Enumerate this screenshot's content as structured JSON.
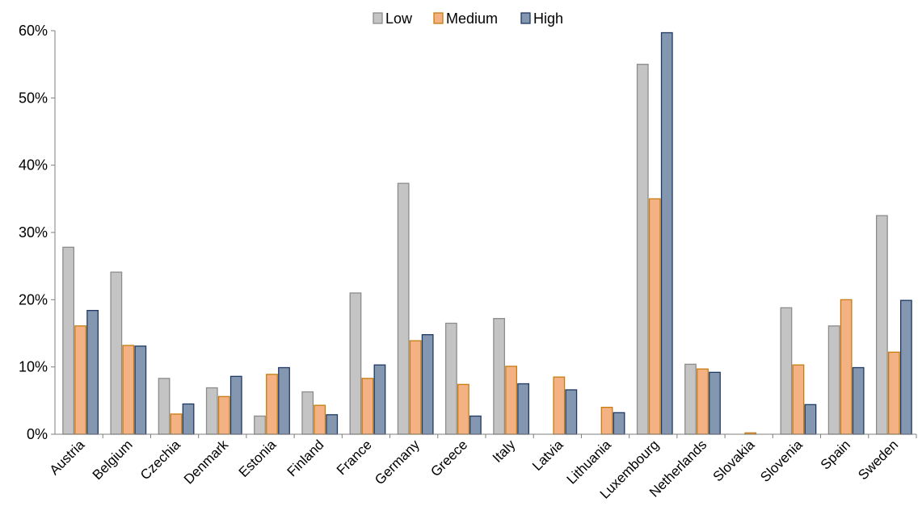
{
  "chart_data": {
    "type": "bar",
    "title": "",
    "xlabel": "",
    "ylabel": "",
    "ylim": [
      0,
      60
    ],
    "yticks": [
      0,
      10,
      20,
      30,
      40,
      50,
      60
    ],
    "ytick_labels": [
      "0%",
      "10%",
      "20%",
      "30%",
      "40%",
      "50%",
      "60%"
    ],
    "grid": false,
    "legend_position": "top-center",
    "categories": [
      "Austria",
      "Belgium",
      "Czechia",
      "Denmark",
      "Estonia",
      "Finland",
      "France",
      "Germany",
      "Greece",
      "Italy",
      "Latvia",
      "Lithuania",
      "Luxembourg",
      "Netherlands",
      "Slovakia",
      "Slovenia",
      "Spain",
      "Sweden"
    ],
    "series": [
      {
        "name": "Low",
        "fill": "#c4c4c4",
        "stroke": "#8c8c8c",
        "values": [
          27.8,
          24.1,
          8.3,
          6.9,
          2.7,
          6.3,
          21.0,
          37.3,
          16.5,
          17.2,
          0,
          0,
          55.0,
          10.4,
          0,
          18.8,
          16.1,
          32.5
        ]
      },
      {
        "name": "Medium",
        "fill": "#f4b183",
        "stroke": "#c77c0e",
        "values": [
          16.1,
          13.2,
          3.0,
          5.6,
          8.9,
          4.3,
          8.3,
          13.9,
          7.4,
          10.1,
          8.5,
          4.0,
          35.0,
          9.7,
          0.2,
          10.3,
          20.0,
          12.2
        ]
      },
      {
        "name": "High",
        "fill": "#8497b0",
        "stroke": "#1f3864",
        "values": [
          18.4,
          13.1,
          4.5,
          8.6,
          9.9,
          2.9,
          10.3,
          14.8,
          2.7,
          7.5,
          6.6,
          3.2,
          59.7,
          9.2,
          0,
          4.4,
          9.9,
          19.9
        ]
      }
    ]
  }
}
